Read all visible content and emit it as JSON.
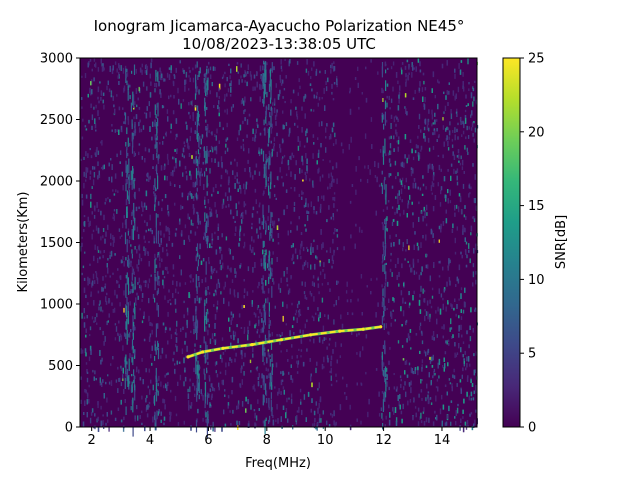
{
  "chart_data": {
    "type": "heatmap",
    "title_line1": "Ionogram Jicamarca-Ayacucho Polarization NE45°",
    "title_line2": "10/08/2023-13:38:05 UTC",
    "xlabel": "Freq(MHz)",
    "ylabel": "Kilometers(Km)",
    "xlim": [
      1.6,
      15.2
    ],
    "ylim": [
      0,
      3000
    ],
    "x_ticks": [
      2,
      4,
      6,
      8,
      10,
      12,
      14
    ],
    "y_ticks": [
      0,
      500,
      1000,
      1500,
      2000,
      2500,
      3000
    ],
    "colorbar": {
      "label": "SNR[dB]",
      "range": [
        0,
        25
      ],
      "ticks": [
        0,
        5,
        10,
        15,
        20,
        25
      ],
      "colormap": "viridis"
    },
    "echo_trace": {
      "description": "F-layer virtual height trace",
      "points": [
        [
          5.3,
          570
        ],
        [
          5.8,
          610
        ],
        [
          6.5,
          640
        ],
        [
          7.5,
          670
        ],
        [
          8.5,
          710
        ],
        [
          9.5,
          750
        ],
        [
          10.5,
          780
        ],
        [
          11.3,
          795
        ],
        [
          11.9,
          815
        ]
      ]
    },
    "noise_bands_mhz": [
      3.2,
      3.4,
      4.2,
      5.6,
      5.9,
      7.9,
      8.1,
      12.0
    ],
    "quiet_band_mhz": [
      10.4,
      11.9
    ]
  },
  "colors": {
    "background": "#440154",
    "viridis": [
      "#440154",
      "#482878",
      "#3e4989",
      "#31688e",
      "#26828e",
      "#1f9e89",
      "#35b779",
      "#6ece58",
      "#b5de2b",
      "#fde725"
    ]
  }
}
